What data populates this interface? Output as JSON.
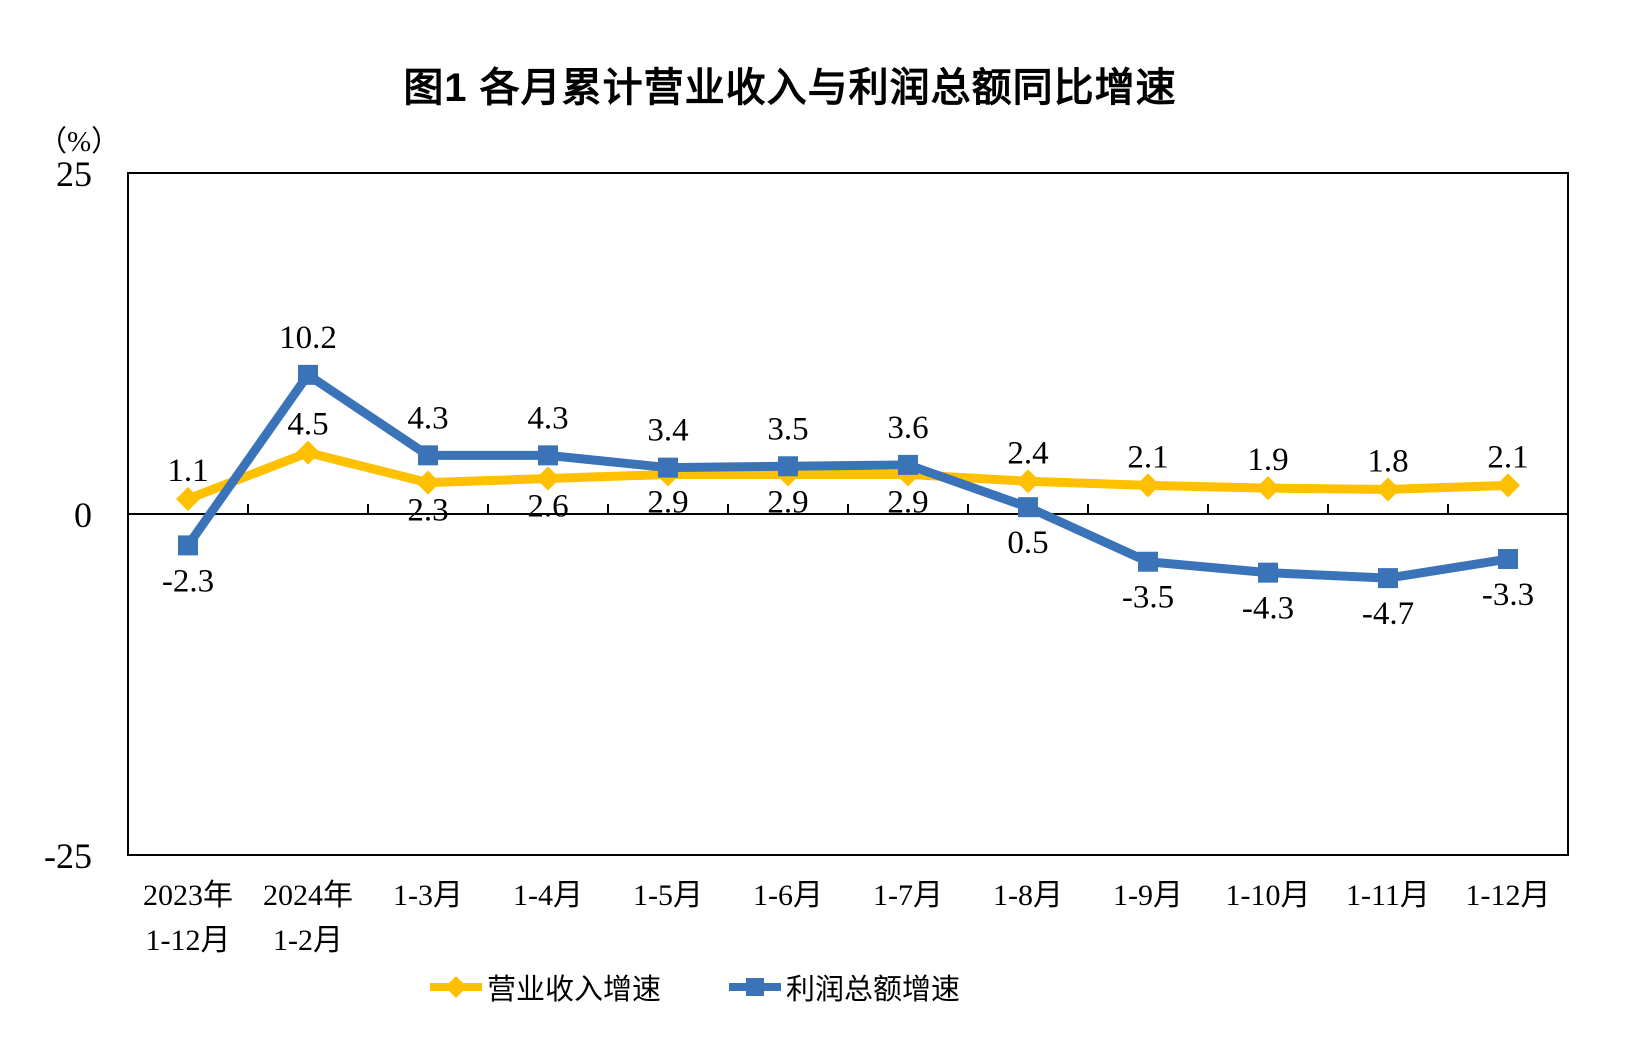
{
  "chart_data": {
    "type": "line",
    "title": "图1  各月累计营业收入与利润总额同比增速",
    "unit_label": "（%）",
    "categories": [
      "2023年\n1-12月",
      "2024年\n1-2月",
      "1-3月",
      "1-4月",
      "1-5月",
      "1-6月",
      "1-7月",
      "1-8月",
      "1-9月",
      "1-10月",
      "1-11月",
      "1-12月"
    ],
    "y_axis": {
      "min": -25,
      "max": 25,
      "ticks": [
        25,
        0,
        -25
      ]
    },
    "grid": "none",
    "legend_position": "bottom",
    "series": [
      {
        "key": "revenue-growth",
        "name": "营业收入增速",
        "color": "#FFC000",
        "marker": "diamond",
        "values": [
          1.1,
          4.5,
          2.3,
          2.6,
          2.9,
          2.9,
          2.9,
          2.4,
          2.1,
          1.9,
          1.8,
          2.1
        ],
        "label_position": [
          "above",
          "above",
          "below",
          "below",
          "below",
          "below",
          "below",
          "above",
          "above",
          "above",
          "above",
          "above"
        ]
      },
      {
        "key": "profit-growth",
        "name": "利润总额增速",
        "color": "#3B73B9",
        "marker": "square",
        "values": [
          -2.3,
          10.2,
          4.3,
          4.3,
          3.4,
          3.5,
          3.6,
          0.5,
          -3.5,
          -4.3,
          -4.7,
          -3.3
        ],
        "label_position": [
          "below",
          "above",
          "above",
          "above",
          "above",
          "above",
          "above",
          "below",
          "below",
          "below",
          "below",
          "below"
        ]
      }
    ]
  }
}
